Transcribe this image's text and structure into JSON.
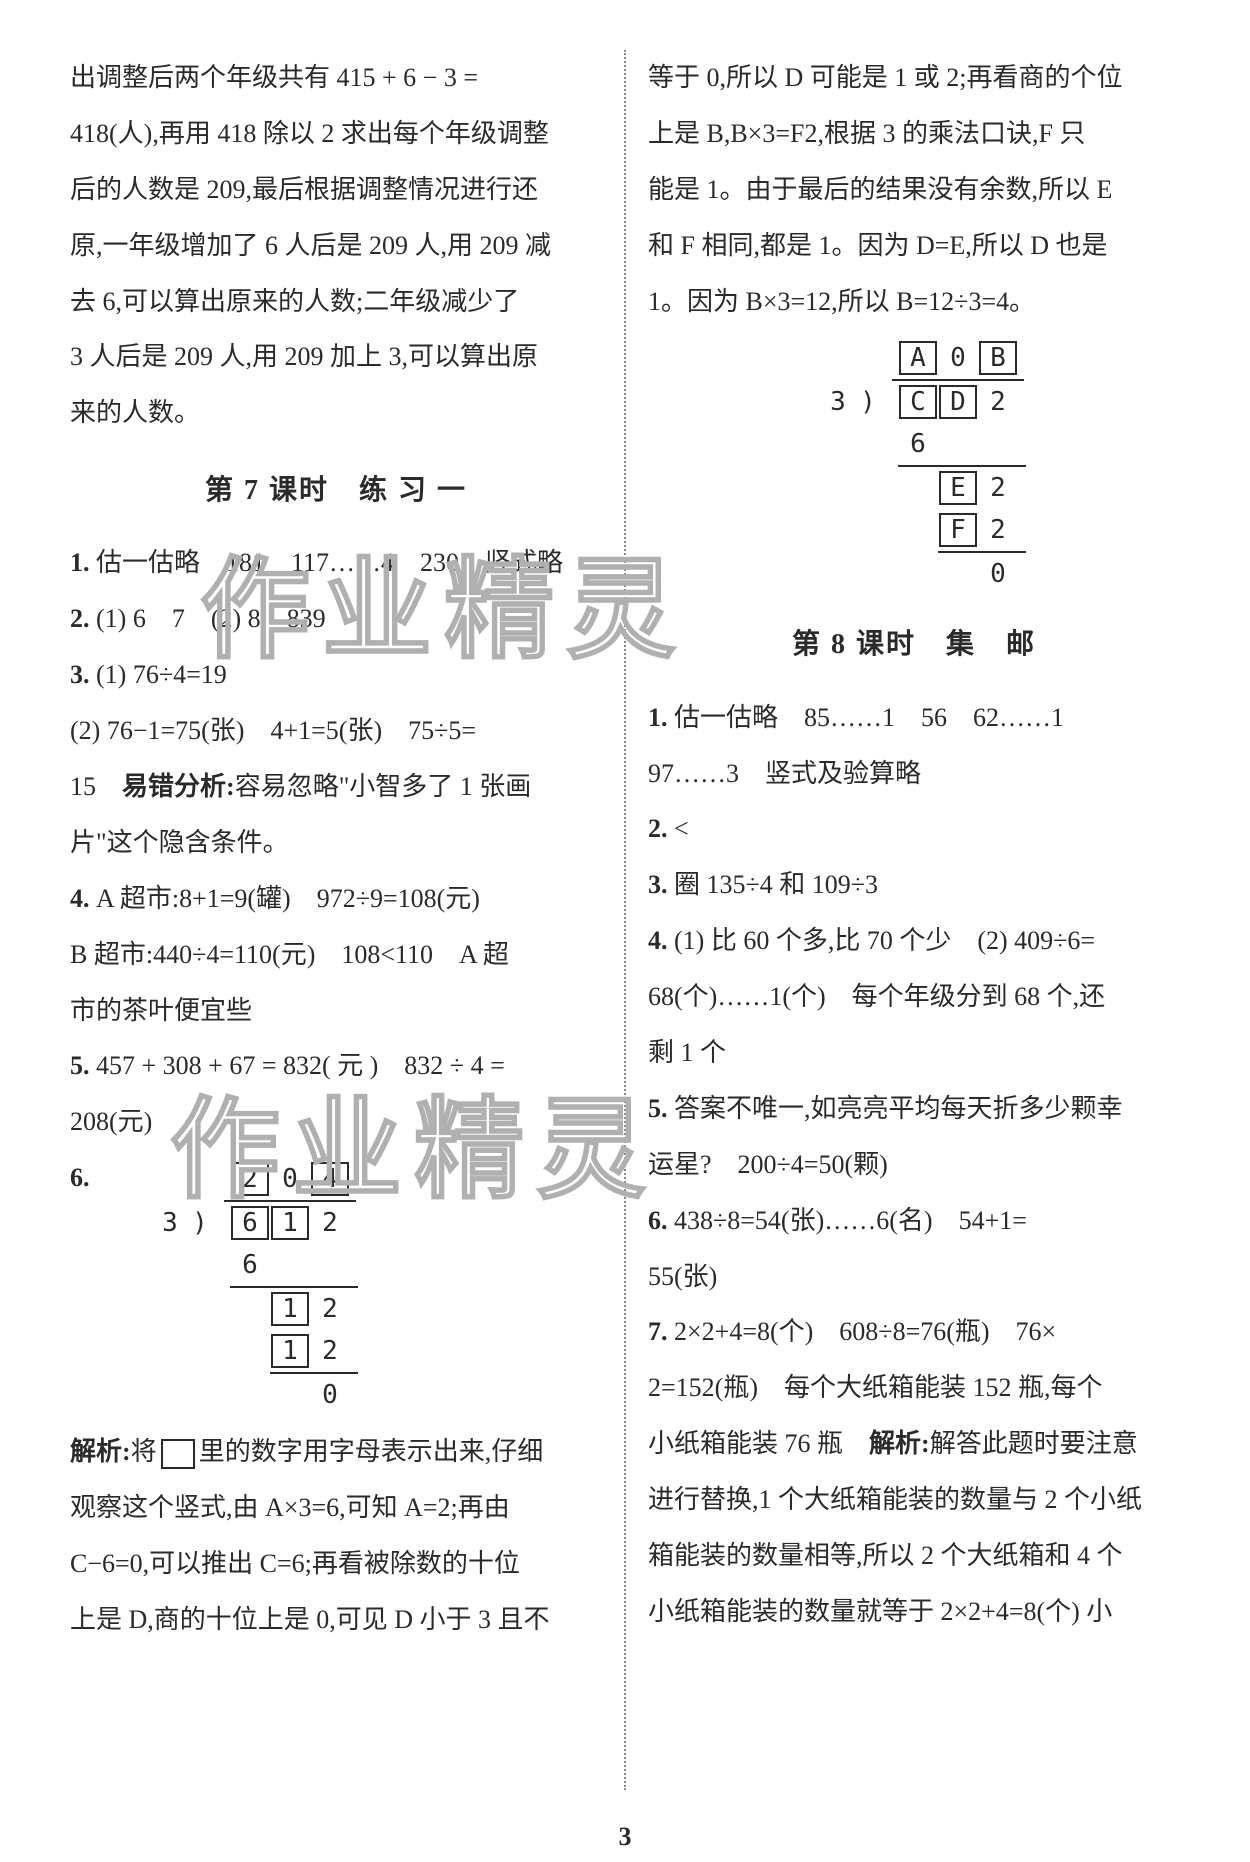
{
  "left": {
    "intro_lines": [
      "出调整后两个年级共有 415 + 6 − 3 =",
      "418(人),再用 418 除以 2 求出每个年级调整",
      "后的人数是 209,最后根据调整情况进行还",
      "原,一年级增加了 6 人后是 209 人,用 209 减",
      "去 6,可以算出原来的人数;二年级减少了",
      "3 人后是 209 人,用 209 加上 3,可以算出原",
      "来的人数。"
    ],
    "section_title": "第 7 课时　练 习 一",
    "q1": "估一估略　181　117……4　230　竖式略",
    "q2": "(1) 6　7　(2) 8　839",
    "q3a": "(1) 76÷4=19",
    "q3b": "(2) 76−1=75(张)　4+1=5(张)　75÷5=",
    "q3c_pre": "15　",
    "q3c_bold": "易错分析:",
    "q3c_post": "容易忽略\"小智多了 1 张画",
    "q3d": "片\"这个隐含条件。",
    "q4a": "A 超市:8+1=9(罐)　972÷9=108(元)",
    "q4b": "B 超市:440÷4=110(元)　108<110　A 超",
    "q4c": "市的茶叶便宜些",
    "q5a": "457 + 308 + 67 = 832( 元 )　832 ÷ 4 =",
    "q5b": "208(元)",
    "q6_label": "6.",
    "ld1": {
      "quotient": [
        "2",
        "0",
        "4"
      ],
      "quotient_boxed": [
        true,
        false,
        true
      ],
      "divisor": "3",
      "dividend": [
        "6",
        "1",
        "2"
      ],
      "dividend_boxed": [
        true,
        true,
        false
      ],
      "rows": [
        {
          "indent": 1,
          "cells": [
            "6"
          ],
          "boxed": [
            false
          ]
        },
        {
          "line_from": 1,
          "line_span": 3
        },
        {
          "indent": 2,
          "cells": [
            "1",
            "2"
          ],
          "boxed": [
            true,
            false
          ]
        },
        {
          "indent": 2,
          "cells": [
            "1",
            "2"
          ],
          "boxed": [
            true,
            false
          ]
        },
        {
          "line_from": 2,
          "line_span": 2
        },
        {
          "indent": 3,
          "cells": [
            "0"
          ],
          "boxed": [
            false
          ]
        }
      ]
    },
    "analysis_bold": "解析:",
    "analysis_lines": [
      "将　　里的数字用字母表示出来,仔细",
      "观察这个竖式,由 A×3=6,可知 A=2;再由",
      "C−6=0,可以推出 C=6;再看被除数的十位",
      "上是 D,商的十位上是 0,可见 D 小于 3 且不"
    ]
  },
  "right": {
    "intro_lines": [
      "等于 0,所以 D 可能是 1 或 2;再看商的个位",
      "上是 B,B×3=F2,根据 3 的乘法口诀,F 只",
      "能是 1。由于最后的结果没有余数,所以 E",
      "和 F 相同,都是 1。因为 D=E,所以 D 也是",
      "1。因为 B×3=12,所以 B=12÷3=4。"
    ],
    "ld2": {
      "quotient": [
        "A",
        "0",
        "B"
      ],
      "quotient_boxed": [
        true,
        false,
        true
      ],
      "divisor": "3",
      "dividend": [
        "C",
        "D",
        "2"
      ],
      "dividend_boxed": [
        true,
        true,
        false
      ],
      "rows": [
        {
          "indent": 1,
          "cells": [
            "6"
          ],
          "boxed": [
            false
          ]
        },
        {
          "line_from": 1,
          "line_span": 3
        },
        {
          "indent": 2,
          "cells": [
            "E",
            "2"
          ],
          "boxed": [
            true,
            false
          ]
        },
        {
          "indent": 2,
          "cells": [
            "F",
            "2"
          ],
          "boxed": [
            true,
            false
          ]
        },
        {
          "line_from": 2,
          "line_span": 2
        },
        {
          "indent": 3,
          "cells": [
            "0"
          ],
          "boxed": [
            false
          ]
        }
      ]
    },
    "section_title": "第 8 课时　集　邮",
    "q1a": "估一估略　85……1　56　62……1",
    "q1b": "97……3　竖式及验算略",
    "q2": "<",
    "q3": "圈 135÷4 和 109÷3",
    "q4a": "(1) 比 60 个多,比 70 个少　(2) 409÷6=",
    "q4b": "68(个)……1(个)　每个年级分到 68 个,还",
    "q4c": "剩 1 个",
    "q5a": "答案不唯一,如亮亮平均每天折多少颗幸",
    "q5b": "运星?　200÷4=50(颗)",
    "q6a": "438÷8=54(张)……6(名)　54+1=",
    "q6b": "55(张)",
    "q7a": "2×2+4=8(个)　608÷8=76(瓶)　76×",
    "q7b": "2=152(瓶)　每个大纸箱能装 152 瓶,每个",
    "q7c_pre": "小纸箱能装 76 瓶　",
    "q7c_bold": "解析:",
    "q7c_post": "解答此题时要注意",
    "q7d": "进行替换,1 个大纸箱能装的数量与 2 个小纸",
    "q7e": "箱能装的数量相等,所以 2 个大纸箱和 4 个",
    "q7f": "小纸箱能装的数量就等于 2×2+4=8(个) 小"
  },
  "watermarks": {
    "text": "作业精灵",
    "color": "#b0b0b0"
  },
  "page_number": "3"
}
